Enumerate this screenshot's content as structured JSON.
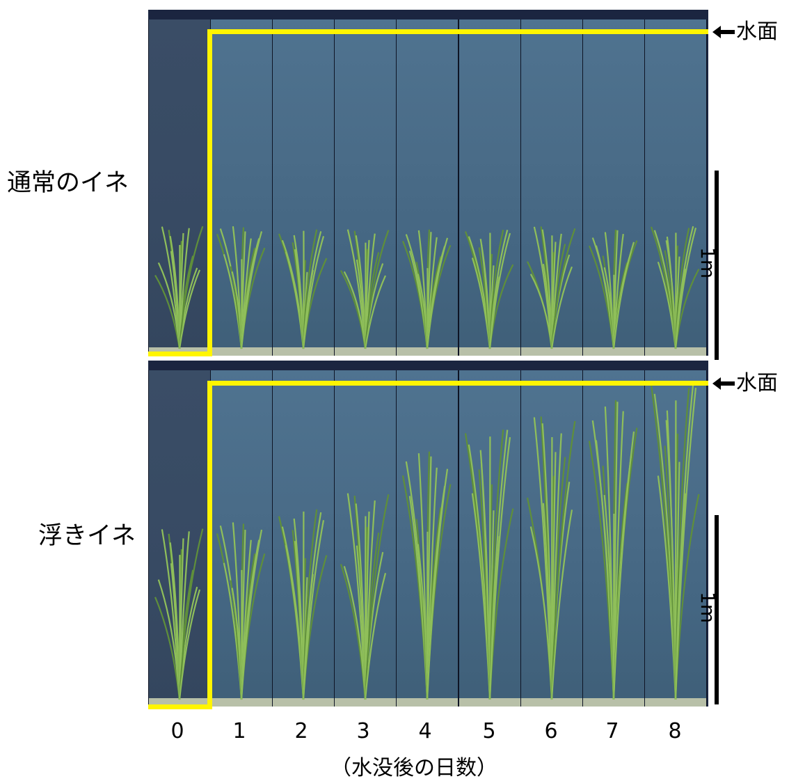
{
  "rows": [
    {
      "label": "通常のイネ",
      "plant_heights": [
        0.38,
        0.38,
        0.37,
        0.37,
        0.37,
        0.37,
        0.38,
        0.37,
        0.38
      ]
    },
    {
      "label": "浮きイネ",
      "plant_heights": [
        0.53,
        0.55,
        0.59,
        0.64,
        0.77,
        0.84,
        0.88,
        0.93,
        0.98
      ]
    }
  ],
  "water_surface_label": "水面",
  "scale_label": "1m",
  "days": [
    "0",
    "1",
    "2",
    "3",
    "4",
    "5",
    "6",
    "7",
    "8"
  ],
  "x_axis_label": "（水没後の日数）",
  "colors": {
    "waterline": "#fff500",
    "leaf": "#8fbf5a",
    "leaf_dark": "#5f8f3a"
  }
}
